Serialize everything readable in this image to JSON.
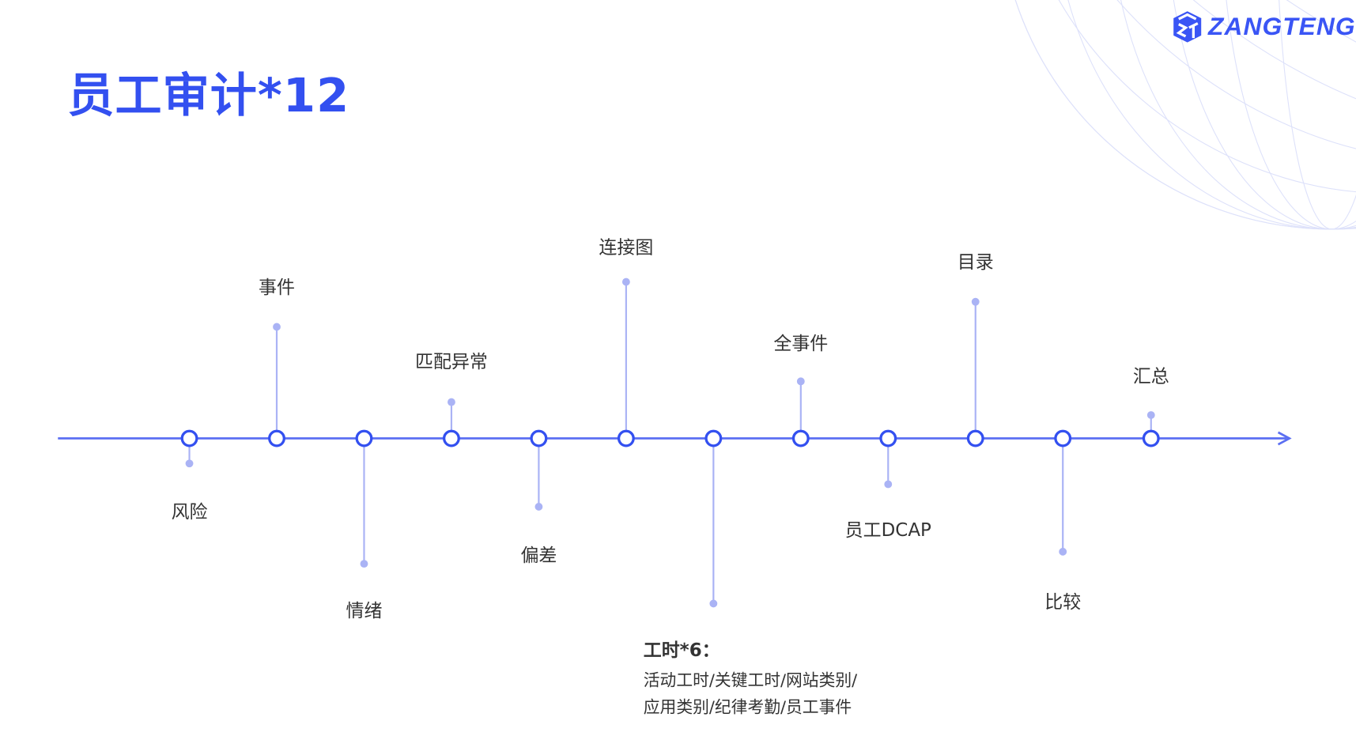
{
  "title": "员工审计*12",
  "logo": {
    "text": "ZANGTENG"
  },
  "colors": {
    "accent": "#3350f0",
    "line": "#5b6ff2",
    "stem": "#aab3f5",
    "mesh": "#dde1fa"
  },
  "timeline": {
    "nodes": [
      {
        "label": "风险",
        "side": "below"
      },
      {
        "label": "事件",
        "side": "above"
      },
      {
        "label": "情绪",
        "side": "below"
      },
      {
        "label": "匹配异常",
        "side": "above"
      },
      {
        "label": "偏差",
        "side": "below"
      },
      {
        "label": "连接图",
        "side": "above"
      },
      {
        "label": "",
        "side": "below"
      },
      {
        "label": "全事件",
        "side": "above"
      },
      {
        "label": "员工DCAP",
        "side": "below"
      },
      {
        "label": "目录",
        "side": "above"
      },
      {
        "label": "比较",
        "side": "below"
      },
      {
        "label": "汇总",
        "side": "above"
      }
    ]
  },
  "note": {
    "heading": "工时*6：",
    "line1": "活动工时/关键工时/网站类别/",
    "line2": "应用类别/纪律考勤/员工事件"
  }
}
